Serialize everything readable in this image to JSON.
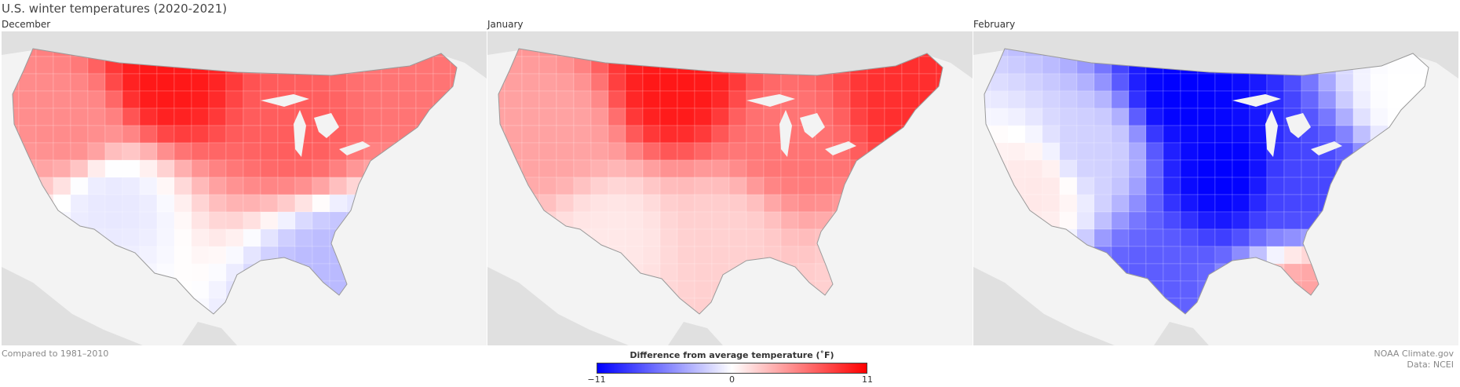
{
  "title": "U.S. winter temperatures (2020-2021)",
  "panels": [
    {
      "label": "December"
    },
    {
      "label": "January"
    },
    {
      "label": "February"
    }
  ],
  "footer": {
    "left": "Compared to 1981–2010",
    "right_line1": "NOAA Climate.gov",
    "right_line2": "Data: NCEI"
  },
  "legend": {
    "title": "Difference from average temperature (˚F)",
    "min_label": "−11",
    "mid_label": "0",
    "max_label": "11",
    "min_color": "#0000ff",
    "mid_color": "#ffffff",
    "max_color": "#ff0000"
  },
  "colors": {
    "background_land": "#e0e0e0",
    "water": "#f3f3f3",
    "state_border": "#9a9a9a"
  }
}
